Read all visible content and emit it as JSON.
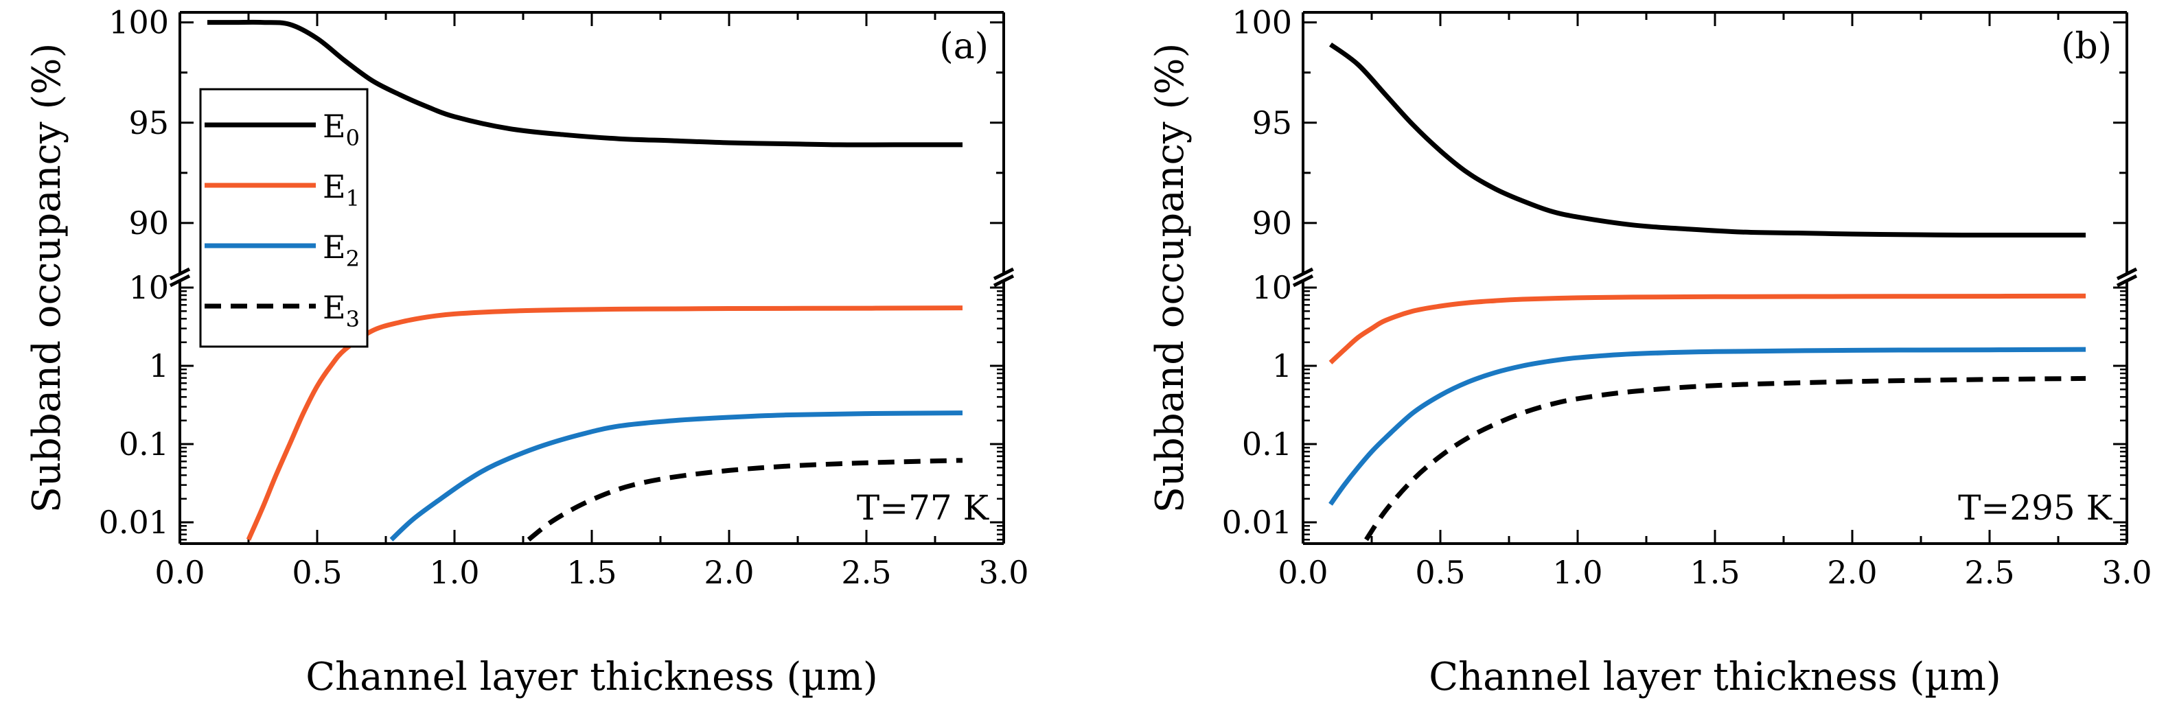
{
  "chart_data": [
    {
      "type": "line",
      "panel_label": "(a)",
      "annotation": "T=77 K",
      "xlabel": "Channel layer thickness (µm)",
      "ylabel": "Subband occupancy (%)",
      "xlim": [
        0.0,
        3.0
      ],
      "xticks": [
        "0.0",
        "0.5",
        "1.0",
        "1.5",
        "2.0",
        "2.5",
        "3.0"
      ],
      "y_axis_break": true,
      "ylim_upper_linear": [
        87.5,
        100.5
      ],
      "yticks_upper": [
        "100",
        "95",
        "90"
      ],
      "ylim_lower_log": [
        0.006,
        10
      ],
      "yticks_lower": [
        "10",
        "1",
        "0.1",
        "0.01"
      ],
      "legend_position": "upper-left",
      "series": [
        {
          "name": "E",
          "sub": "0",
          "color": "#000000",
          "style": "solid",
          "segment": "upper",
          "x": [
            0.1,
            0.2,
            0.3,
            0.4,
            0.5,
            0.6,
            0.7,
            0.8,
            0.9,
            1.0,
            1.2,
            1.4,
            1.6,
            1.8,
            2.0,
            2.2,
            2.4,
            2.6,
            2.85
          ],
          "y": [
            100.0,
            100.0,
            100.0,
            99.9,
            99.2,
            98.1,
            97.1,
            96.4,
            95.8,
            95.3,
            94.7,
            94.4,
            94.2,
            94.1,
            94.0,
            93.95,
            93.9,
            93.9,
            93.9
          ]
        },
        {
          "name": "E",
          "sub": "1",
          "color": "#f35b2a",
          "style": "solid",
          "segment": "lower",
          "x": [
            0.25,
            0.3,
            0.35,
            0.4,
            0.45,
            0.5,
            0.55,
            0.6,
            0.7,
            0.8,
            0.9,
            1.0,
            1.2,
            1.4,
            1.6,
            1.8,
            2.0,
            2.5,
            2.85
          ],
          "y": [
            0.006,
            0.015,
            0.04,
            0.1,
            0.25,
            0.55,
            1.0,
            1.6,
            2.8,
            3.6,
            4.2,
            4.6,
            5.0,
            5.2,
            5.3,
            5.35,
            5.4,
            5.45,
            5.5
          ]
        },
        {
          "name": "E",
          "sub": "2",
          "color": "#1a78c2",
          "style": "solid",
          "segment": "lower",
          "x": [
            0.77,
            0.85,
            0.95,
            1.05,
            1.15,
            1.3,
            1.45,
            1.6,
            1.8,
            2.0,
            2.2,
            2.5,
            2.85
          ],
          "y": [
            0.006,
            0.011,
            0.02,
            0.035,
            0.055,
            0.09,
            0.13,
            0.17,
            0.2,
            0.22,
            0.235,
            0.245,
            0.25
          ]
        },
        {
          "name": "E",
          "sub": "3",
          "color": "#000000",
          "style": "dashed",
          "segment": "lower",
          "x": [
            1.27,
            1.35,
            1.45,
            1.55,
            1.65,
            1.8,
            2.0,
            2.2,
            2.4,
            2.6,
            2.85
          ],
          "y": [
            0.006,
            0.01,
            0.016,
            0.023,
            0.03,
            0.038,
            0.046,
            0.052,
            0.056,
            0.059,
            0.062
          ]
        }
      ]
    },
    {
      "type": "line",
      "panel_label": "(b)",
      "annotation": "T=295 K",
      "xlabel": "Channel layer thickness (µm)",
      "ylabel": "Subband occupancy (%)",
      "xlim": [
        0.0,
        3.0
      ],
      "xticks": [
        "0.0",
        "0.5",
        "1.0",
        "1.5",
        "2.0",
        "2.5",
        "3.0"
      ],
      "y_axis_break": true,
      "ylim_upper_linear": [
        87.5,
        100.5
      ],
      "yticks_upper": [
        "100",
        "95",
        "90"
      ],
      "ylim_lower_log": [
        0.006,
        10
      ],
      "yticks_lower": [
        "10",
        "1",
        "0.1",
        "0.01"
      ],
      "series": [
        {
          "name": "E",
          "sub": "0",
          "color": "#000000",
          "style": "solid",
          "segment": "upper",
          "x": [
            0.1,
            0.2,
            0.3,
            0.4,
            0.5,
            0.6,
            0.7,
            0.8,
            0.9,
            1.0,
            1.2,
            1.4,
            1.6,
            1.8,
            2.0,
            2.2,
            2.4,
            2.6,
            2.85
          ],
          "y": [
            98.9,
            97.9,
            96.4,
            94.9,
            93.6,
            92.5,
            91.7,
            91.1,
            90.6,
            90.3,
            89.9,
            89.7,
            89.55,
            89.5,
            89.45,
            89.42,
            89.4,
            89.4,
            89.4
          ]
        },
        {
          "name": "E",
          "sub": "1",
          "color": "#f35b2a",
          "style": "solid",
          "segment": "lower",
          "x": [
            0.1,
            0.15,
            0.2,
            0.25,
            0.3,
            0.4,
            0.5,
            0.6,
            0.7,
            0.8,
            1.0,
            1.2,
            1.5,
            2.0,
            2.5,
            2.85
          ],
          "y": [
            1.1,
            1.6,
            2.3,
            3.0,
            3.8,
            5.0,
            5.8,
            6.4,
            6.8,
            7.1,
            7.4,
            7.55,
            7.65,
            7.7,
            7.75,
            7.8
          ]
        },
        {
          "name": "E",
          "sub": "2",
          "color": "#1a78c2",
          "style": "solid",
          "segment": "lower",
          "x": [
            0.1,
            0.15,
            0.2,
            0.25,
            0.3,
            0.4,
            0.5,
            0.6,
            0.7,
            0.8,
            0.9,
            1.0,
            1.2,
            1.5,
            2.0,
            2.5,
            2.85
          ],
          "y": [
            0.017,
            0.03,
            0.05,
            0.08,
            0.12,
            0.25,
            0.42,
            0.62,
            0.82,
            1.0,
            1.15,
            1.27,
            1.42,
            1.52,
            1.58,
            1.6,
            1.62
          ]
        },
        {
          "name": "E",
          "sub": "3",
          "color": "#000000",
          "style": "dashed",
          "segment": "lower",
          "x": [
            0.23,
            0.3,
            0.4,
            0.5,
            0.6,
            0.7,
            0.8,
            0.9,
            1.0,
            1.2,
            1.5,
            2.0,
            2.5,
            2.85
          ],
          "y": [
            0.006,
            0.014,
            0.035,
            0.07,
            0.12,
            0.18,
            0.25,
            0.32,
            0.38,
            0.47,
            0.56,
            0.63,
            0.67,
            0.69
          ]
        }
      ]
    }
  ]
}
